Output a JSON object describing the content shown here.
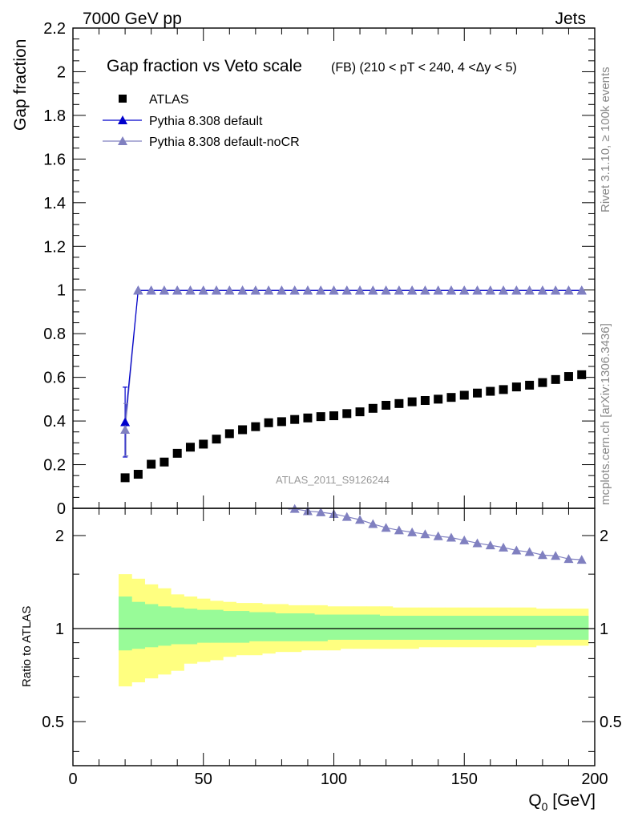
{
  "header": {
    "left": "7000 GeV pp",
    "right": "Jets"
  },
  "side_labels": {
    "rivet": "Rivet 3.1.10, ≥ 100k events",
    "mcplots": "mcplots.cern.ch [arXiv:1306.3436]"
  },
  "watermark": "ATLAS_2011_S9126244",
  "chart_data": [
    {
      "type": "scatter",
      "title": "Gap fraction vs Veto scale",
      "subtitle": "(FB) (210 < pT < 240, 4 <Δy < 5)",
      "xlabel": "Q",
      "xlabel_sub": "0",
      "xlabel_unit": "[GeV]",
      "ylabel": "Gap fraction",
      "xlim": [
        0,
        200
      ],
      "ylim": [
        0,
        2.2
      ],
      "x_ticks": [
        "0",
        "50",
        "100",
        "150",
        "200"
      ],
      "y_ticks": [
        "0",
        "0.2",
        "0.4",
        "0.6",
        "0.8",
        "1",
        "1.2",
        "1.4",
        "1.6",
        "1.8",
        "2",
        "2.2"
      ],
      "x": [
        20,
        25,
        30,
        35,
        40,
        45,
        50,
        55,
        60,
        65,
        70,
        75,
        80,
        85,
        90,
        95,
        100,
        105,
        110,
        115,
        120,
        125,
        130,
        135,
        140,
        145,
        150,
        155,
        160,
        165,
        170,
        175,
        180,
        185,
        190,
        195
      ],
      "legend_position": "top-left",
      "series": [
        {
          "name": "ATLAS",
          "marker": "square",
          "color": "#000000",
          "values": [
            0.14,
            0.156,
            0.202,
            0.212,
            0.252,
            0.28,
            0.294,
            0.317,
            0.342,
            0.36,
            0.374,
            0.392,
            0.397,
            0.407,
            0.414,
            0.42,
            0.424,
            0.434,
            0.442,
            0.458,
            0.472,
            0.48,
            0.488,
            0.494,
            0.5,
            0.508,
            0.518,
            0.528,
            0.536,
            0.544,
            0.556,
            0.564,
            0.576,
            0.59,
            0.604,
            0.612
          ]
        },
        {
          "name": "Pythia 8.308 default",
          "marker": "triangle",
          "color": "#0000cc",
          "values": [
            0.395,
            0.998,
            0.998,
            0.998,
            0.998,
            0.998,
            0.998,
            0.998,
            0.998,
            0.998,
            0.998,
            0.998,
            0.998,
            0.998,
            0.998,
            0.998,
            0.998,
            0.998,
            0.998,
            0.998,
            0.998,
            0.998,
            0.998,
            0.998,
            0.998,
            0.998,
            0.998,
            0.998,
            0.998,
            0.998,
            0.998,
            0.998,
            0.998,
            0.998,
            0.998,
            0.998
          ],
          "errors": [
            0.16,
            0,
            0,
            0,
            0,
            0,
            0,
            0,
            0,
            0,
            0,
            0,
            0,
            0,
            0,
            0,
            0,
            0,
            0,
            0,
            0,
            0,
            0,
            0,
            0,
            0,
            0,
            0,
            0,
            0,
            0,
            0,
            0,
            0,
            0,
            0
          ]
        },
        {
          "name": "Pythia 8.308 default-noCR",
          "marker": "triangle",
          "color": "#8080c0",
          "values": [
            0.36,
            0.998,
            0.998,
            0.998,
            0.998,
            0.998,
            0.998,
            0.998,
            0.998,
            0.998,
            0.998,
            0.998,
            0.998,
            0.998,
            0.998,
            0.998,
            0.998,
            0.998,
            0.998,
            0.998,
            0.998,
            0.998,
            0.998,
            0.998,
            0.998,
            0.998,
            0.998,
            0.998,
            0.998,
            0.998,
            0.998,
            0.998,
            0.998,
            0.998,
            0.998,
            0.998
          ],
          "errors": [
            0.12,
            0,
            0,
            0,
            0,
            0,
            0,
            0,
            0,
            0,
            0,
            0,
            0,
            0,
            0,
            0,
            0,
            0,
            0,
            0,
            0,
            0,
            0,
            0,
            0,
            0,
            0,
            0,
            0,
            0,
            0,
            0,
            0,
            0,
            0,
            0
          ]
        }
      ]
    },
    {
      "type": "line",
      "ylabel": "Ratio to ATLAS",
      "scale": "log",
      "ylim": [
        0.36,
        2.45
      ],
      "y_ticks": [
        "0.5",
        "1",
        "2"
      ],
      "x_edges": [
        17.5,
        22.5,
        27.5,
        32.5,
        37.5,
        42.5,
        47.5,
        52.5,
        57.5,
        62.5,
        67.5,
        72.5,
        77.5,
        82.5,
        87.5,
        92.5,
        97.5,
        102.5,
        107.5,
        112.5,
        117.5,
        122.5,
        127.5,
        132.5,
        137.5,
        142.5,
        147.5,
        152.5,
        157.5,
        162.5,
        167.5,
        172.5,
        177.5,
        182.5,
        187.5,
        192.5,
        197.5
      ],
      "band_inner_up": [
        1.27,
        1.22,
        1.2,
        1.18,
        1.17,
        1.16,
        1.15,
        1.15,
        1.14,
        1.14,
        1.13,
        1.13,
        1.12,
        1.12,
        1.12,
        1.11,
        1.11,
        1.11,
        1.11,
        1.11,
        1.1,
        1.1,
        1.1,
        1.1,
        1.1,
        1.1,
        1.1,
        1.1,
        1.1,
        1.1,
        1.1,
        1.1,
        1.1,
        1.1,
        1.1,
        1.1
      ],
      "band_inner_dn": [
        0.85,
        0.86,
        0.87,
        0.88,
        0.89,
        0.89,
        0.9,
        0.9,
        0.9,
        0.9,
        0.91,
        0.91,
        0.91,
        0.91,
        0.91,
        0.91,
        0.92,
        0.92,
        0.92,
        0.92,
        0.92,
        0.92,
        0.92,
        0.92,
        0.92,
        0.92,
        0.92,
        0.92,
        0.92,
        0.92,
        0.92,
        0.92,
        0.92,
        0.92,
        0.92,
        0.92
      ],
      "band_outer_up": [
        1.5,
        1.45,
        1.39,
        1.35,
        1.29,
        1.27,
        1.25,
        1.23,
        1.22,
        1.21,
        1.21,
        1.2,
        1.2,
        1.19,
        1.19,
        1.19,
        1.18,
        1.18,
        1.18,
        1.18,
        1.18,
        1.17,
        1.17,
        1.17,
        1.17,
        1.17,
        1.17,
        1.17,
        1.17,
        1.17,
        1.17,
        1.17,
        1.16,
        1.16,
        1.16,
        1.16
      ],
      "band_outer_dn": [
        0.65,
        0.67,
        0.69,
        0.71,
        0.73,
        0.77,
        0.78,
        0.79,
        0.81,
        0.82,
        0.82,
        0.83,
        0.84,
        0.84,
        0.85,
        0.85,
        0.85,
        0.86,
        0.86,
        0.86,
        0.86,
        0.86,
        0.86,
        0.87,
        0.87,
        0.87,
        0.87,
        0.87,
        0.87,
        0.87,
        0.87,
        0.87,
        0.88,
        0.88,
        0.88,
        0.88
      ],
      "band_colors": {
        "inner": "#98fb98",
        "outer": "#ffff80"
      },
      "series": [
        {
          "name": "Pythia 8.308 default-noCR",
          "marker": "triangle",
          "color": "#8080c0",
          "x": [
            85,
            90,
            95,
            100,
            105,
            110,
            115,
            120,
            125,
            130,
            135,
            140,
            145,
            150,
            155,
            160,
            165,
            170,
            175,
            180,
            185,
            190,
            195
          ],
          "values": [
            2.44,
            2.4,
            2.38,
            2.35,
            2.3,
            2.25,
            2.18,
            2.12,
            2.08,
            2.05,
            2.02,
            1.99,
            1.97,
            1.93,
            1.89,
            1.86,
            1.83,
            1.79,
            1.77,
            1.73,
            1.72,
            1.68,
            1.67
          ]
        },
        {
          "name": "Pythia 8.308 default",
          "marker": "triangle",
          "color": "#0000cc",
          "x": [
            85,
            90,
            95,
            100,
            105,
            110,
            115,
            120,
            125,
            130,
            135,
            140,
            145,
            150,
            155,
            160,
            165,
            170,
            175,
            180,
            185,
            190,
            195
          ],
          "values": [
            2.44,
            2.4,
            2.38,
            2.35,
            2.3,
            2.25,
            2.18,
            2.12,
            2.08,
            2.05,
            2.02,
            1.99,
            1.97,
            1.93,
            1.89,
            1.86,
            1.83,
            1.79,
            1.77,
            1.73,
            1.72,
            1.68,
            1.67
          ]
        }
      ],
      "reference_line": 1
    }
  ]
}
